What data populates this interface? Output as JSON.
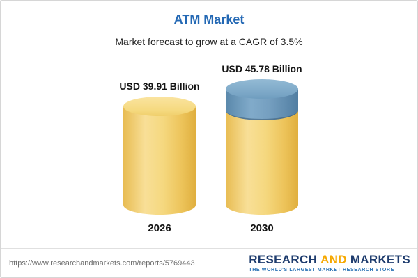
{
  "header": {
    "title": "ATM Market",
    "subtitle": "Market forecast to grow at a CAGR of 3.5%"
  },
  "chart_data": {
    "type": "bar",
    "variant": "3d-cylinder",
    "title": "ATM Market",
    "subtitle": "Market forecast to grow at a CAGR of 3.5%",
    "categories": [
      "2026",
      "2030"
    ],
    "values": [
      39.91,
      45.78
    ],
    "value_labels": [
      "USD 39.91 Billion",
      "USD 45.78 Billion"
    ],
    "unit": "USD Billion",
    "ylim": [
      0,
      45.78
    ],
    "grid": false,
    "legend": "none",
    "series": [
      {
        "name": "base",
        "values": [
          39.91,
          39.91
        ],
        "color": "#F4D06F"
      },
      {
        "name": "growth",
        "values": [
          0,
          5.87
        ],
        "color": "#6C9CBE"
      }
    ],
    "colors": {
      "bar_body": "#F4D06F",
      "bar_top": "#F9DE92",
      "growth_body": "#6C9CBE",
      "growth_top": "#85AECB"
    }
  },
  "footer": {
    "source_url": "https://www.researchandmarkets.com/reports/5769443",
    "logo": {
      "part1": "RESEARCH",
      "part2": "AND",
      "part3": "MARKETS",
      "tagline": "THE WORLD'S LARGEST MARKET RESEARCH STORE",
      "navy": "#1E3C6E",
      "orange": "#F6A800",
      "tagline_color": "#2E75B6"
    }
  },
  "colors": {
    "title": "#2368B4",
    "text": "#141414",
    "border": "#D6D6D6",
    "url_text": "#6E6E6E"
  }
}
